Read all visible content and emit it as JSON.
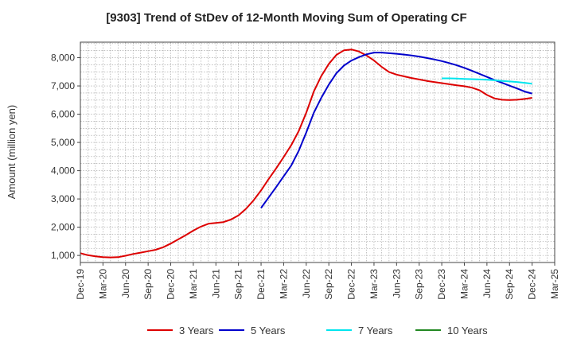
{
  "chart_data": {
    "type": "line",
    "title": "[9303]  Trend of StDev of 12-Month Moving Sum of Operating CF",
    "ylabel": "Amount (million yen)",
    "xlabel": "",
    "ylim": [
      750,
      8550
    ],
    "yticks": [
      1000,
      2000,
      3000,
      4000,
      5000,
      6000,
      7000,
      8000
    ],
    "ytick_labels": [
      "1,000",
      "2,000",
      "3,000",
      "4,000",
      "5,000",
      "6,000",
      "7,000",
      "8,000"
    ],
    "xticks": [
      "Dec-19",
      "Mar-20",
      "Jun-20",
      "Sep-20",
      "Dec-20",
      "Mar-21",
      "Jun-21",
      "Sep-21",
      "Dec-21",
      "Mar-22",
      "Jun-22",
      "Sep-22",
      "Dec-22",
      "Mar-23",
      "Jun-23",
      "Sep-23",
      "Dec-23",
      "Mar-24",
      "Jun-24",
      "Sep-24",
      "Dec-24",
      "Mar-25"
    ],
    "grid": true,
    "legend_position": "bottom",
    "series": [
      {
        "name": "3 Years",
        "color": "#dd0000",
        "points": [
          [
            "2019-12",
            1080
          ],
          [
            "2020-01",
            1010
          ],
          [
            "2020-02",
            970
          ],
          [
            "2020-03",
            940
          ],
          [
            "2020-04",
            930
          ],
          [
            "2020-05",
            940
          ],
          [
            "2020-06",
            990
          ],
          [
            "2020-07",
            1050
          ],
          [
            "2020-08",
            1100
          ],
          [
            "2020-09",
            1150
          ],
          [
            "2020-10",
            1200
          ],
          [
            "2020-11",
            1290
          ],
          [
            "2020-12",
            1420
          ],
          [
            "2021-01",
            1570
          ],
          [
            "2021-02",
            1720
          ],
          [
            "2021-03",
            1880
          ],
          [
            "2021-04",
            2020
          ],
          [
            "2021-05",
            2120
          ],
          [
            "2021-06",
            2150
          ],
          [
            "2021-07",
            2180
          ],
          [
            "2021-08",
            2270
          ],
          [
            "2021-09",
            2420
          ],
          [
            "2021-10",
            2650
          ],
          [
            "2021-11",
            2950
          ],
          [
            "2021-12",
            3300
          ],
          [
            "2022-01",
            3700
          ],
          [
            "2022-02",
            4080
          ],
          [
            "2022-03",
            4480
          ],
          [
            "2022-04",
            4900
          ],
          [
            "2022-05",
            5400
          ],
          [
            "2022-06",
            6050
          ],
          [
            "2022-07",
            6800
          ],
          [
            "2022-08",
            7350
          ],
          [
            "2022-09",
            7780
          ],
          [
            "2022-10",
            8100
          ],
          [
            "2022-11",
            8260
          ],
          [
            "2022-12",
            8290
          ],
          [
            "2023-01",
            8220
          ],
          [
            "2023-02",
            8080
          ],
          [
            "2023-03",
            7900
          ],
          [
            "2023-04",
            7680
          ],
          [
            "2023-05",
            7490
          ],
          [
            "2023-06",
            7400
          ],
          [
            "2023-07",
            7340
          ],
          [
            "2023-08",
            7280
          ],
          [
            "2023-09",
            7230
          ],
          [
            "2023-10",
            7180
          ],
          [
            "2023-11",
            7140
          ],
          [
            "2023-12",
            7100
          ],
          [
            "2024-01",
            7060
          ],
          [
            "2024-02",
            7020
          ],
          [
            "2024-03",
            6990
          ],
          [
            "2024-04",
            6940
          ],
          [
            "2024-05",
            6850
          ],
          [
            "2024-06",
            6680
          ],
          [
            "2024-07",
            6560
          ],
          [
            "2024-08",
            6510
          ],
          [
            "2024-09",
            6500
          ],
          [
            "2024-10",
            6510
          ],
          [
            "2024-11",
            6540
          ],
          [
            "2024-12",
            6580
          ]
        ]
      },
      {
        "name": "5 Years",
        "color": "#0000cc",
        "points": [
          [
            "2021-12",
            2680
          ],
          [
            "2022-01",
            3050
          ],
          [
            "2022-02",
            3420
          ],
          [
            "2022-03",
            3800
          ],
          [
            "2022-04",
            4180
          ],
          [
            "2022-05",
            4700
          ],
          [
            "2022-06",
            5350
          ],
          [
            "2022-07",
            6050
          ],
          [
            "2022-08",
            6580
          ],
          [
            "2022-09",
            7050
          ],
          [
            "2022-10",
            7450
          ],
          [
            "2022-11",
            7720
          ],
          [
            "2022-12",
            7900
          ],
          [
            "2023-01",
            8020
          ],
          [
            "2023-02",
            8120
          ],
          [
            "2023-03",
            8180
          ],
          [
            "2023-04",
            8180
          ],
          [
            "2023-05",
            8160
          ],
          [
            "2023-06",
            8140
          ],
          [
            "2023-07",
            8110
          ],
          [
            "2023-08",
            8080
          ],
          [
            "2023-09",
            8040
          ],
          [
            "2023-10",
            7990
          ],
          [
            "2023-11",
            7940
          ],
          [
            "2023-12",
            7880
          ],
          [
            "2024-01",
            7810
          ],
          [
            "2024-02",
            7730
          ],
          [
            "2024-03",
            7640
          ],
          [
            "2024-04",
            7540
          ],
          [
            "2024-05",
            7430
          ],
          [
            "2024-06",
            7320
          ],
          [
            "2024-07",
            7210
          ],
          [
            "2024-08",
            7110
          ],
          [
            "2024-09",
            7010
          ],
          [
            "2024-10",
            6910
          ],
          [
            "2024-11",
            6800
          ],
          [
            "2024-12",
            6730
          ]
        ]
      },
      {
        "name": "7 Years",
        "color": "#00e5ee",
        "points": [
          [
            "2023-12",
            7270
          ],
          [
            "2024-01",
            7270
          ],
          [
            "2024-02",
            7260
          ],
          [
            "2024-03",
            7250
          ],
          [
            "2024-04",
            7240
          ],
          [
            "2024-05",
            7230
          ],
          [
            "2024-06",
            7220
          ],
          [
            "2024-07",
            7200
          ],
          [
            "2024-08",
            7180
          ],
          [
            "2024-09",
            7160
          ],
          [
            "2024-10",
            7140
          ],
          [
            "2024-11",
            7110
          ],
          [
            "2024-12",
            7080
          ]
        ]
      },
      {
        "name": "10 Years",
        "color": "#228822",
        "points": []
      }
    ]
  }
}
